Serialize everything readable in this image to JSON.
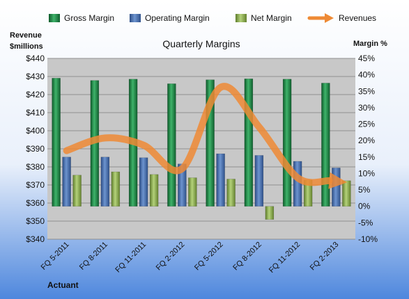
{
  "chart_data": {
    "type": "bar",
    "title": "Quarterly Margins",
    "left_axis_label": [
      "Revenue",
      "$millions"
    ],
    "right_axis_label": "Margin %",
    "categories": [
      "FQ 5-2011",
      "FQ 8-2011",
      "FQ 11-2011",
      "FQ 2-2012",
      "FQ 5-2012",
      "FQ 8-2012",
      "FQ 11-2012",
      "FQ 2-2013"
    ],
    "left_axis": {
      "min": 340,
      "max": 440,
      "step": 10,
      "ticks": [
        "$340",
        "$350",
        "$360",
        "$370",
        "$380",
        "$390",
        "$400",
        "$410",
        "$420",
        "$430",
        "$440"
      ]
    },
    "right_axis": {
      "min": -10,
      "max": 45,
      "step": 5,
      "ticks": [
        "-10%",
        "-5%",
        "0%",
        "5%",
        "10%",
        "15%",
        "20%",
        "25%",
        "30%",
        "35%",
        "40%",
        "45%"
      ]
    },
    "series": [
      {
        "name": "Gross Margin",
        "kind": "bar",
        "axis": "right",
        "color": "#1e8a46",
        "values": [
          39.0,
          38.3,
          38.7,
          37.3,
          38.5,
          38.8,
          38.7,
          37.5
        ]
      },
      {
        "name": "Operating Margin",
        "kind": "bar",
        "axis": "right",
        "color": "#4a72b0",
        "values": [
          15.0,
          15.0,
          14.8,
          12.9,
          16.0,
          15.5,
          13.7,
          11.7
        ]
      },
      {
        "name": "Net Margin",
        "kind": "bar",
        "axis": "right",
        "color": "#8fb14e",
        "values": [
          9.5,
          10.5,
          9.7,
          8.7,
          8.3,
          -4.0,
          8.0,
          7.8
        ]
      },
      {
        "name": "Revenues",
        "kind": "line",
        "axis": "left",
        "color": "#ee8a35",
        "values": [
          389,
          396,
          392,
          379,
          424,
          402,
          374,
          372
        ]
      }
    ],
    "legend_position": "top",
    "footer": "Actuant",
    "colors": {
      "plot_bg": "#c8c8c8",
      "page_bg_top": "#ffffff",
      "page_bg_bottom": "#4e87dd",
      "gridline": "#8f8f8f"
    }
  }
}
